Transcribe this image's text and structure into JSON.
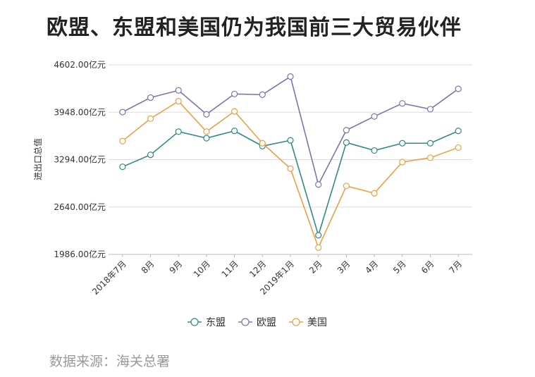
{
  "chart_data": {
    "type": "line",
    "title": "欧盟、东盟和美国仍为我国前三大贸易伙伴",
    "ylabel": "进出口总值",
    "ylim": [
      1986,
      4602
    ],
    "yticks": [
      "4602.00亿元",
      "3948.00亿元",
      "3294.00亿元",
      "2640.00亿元",
      "1986.00亿元"
    ],
    "ytick_values": [
      4602,
      3948,
      3294,
      2640,
      1986
    ],
    "categories": [
      "2018年7月",
      "8月",
      "9月",
      "10月",
      "11月",
      "12月",
      "2019年1月",
      "2月",
      "3月",
      "4月",
      "5月",
      "6月",
      "7月"
    ],
    "grid": true,
    "legend_position": "bottom",
    "series": [
      {
        "name": "东盟",
        "color": "#2e8b84",
        "values": [
          3195,
          3360,
          3680,
          3590,
          3690,
          3480,
          3560,
          2250,
          3530,
          3420,
          3520,
          3520,
          3690
        ]
      },
      {
        "name": "欧盟",
        "color": "#7b74ad",
        "values": [
          3950,
          4150,
          4250,
          3920,
          4200,
          4190,
          4440,
          2950,
          3700,
          3890,
          4070,
          3990,
          4270
        ]
      },
      {
        "name": "美国",
        "color": "#e8a146",
        "values": [
          3550,
          3860,
          4100,
          3680,
          3960,
          3520,
          3170,
          2080,
          2930,
          2830,
          3260,
          3320,
          3460
        ]
      }
    ]
  },
  "footer": {
    "source": "数据来源：海关总署"
  }
}
